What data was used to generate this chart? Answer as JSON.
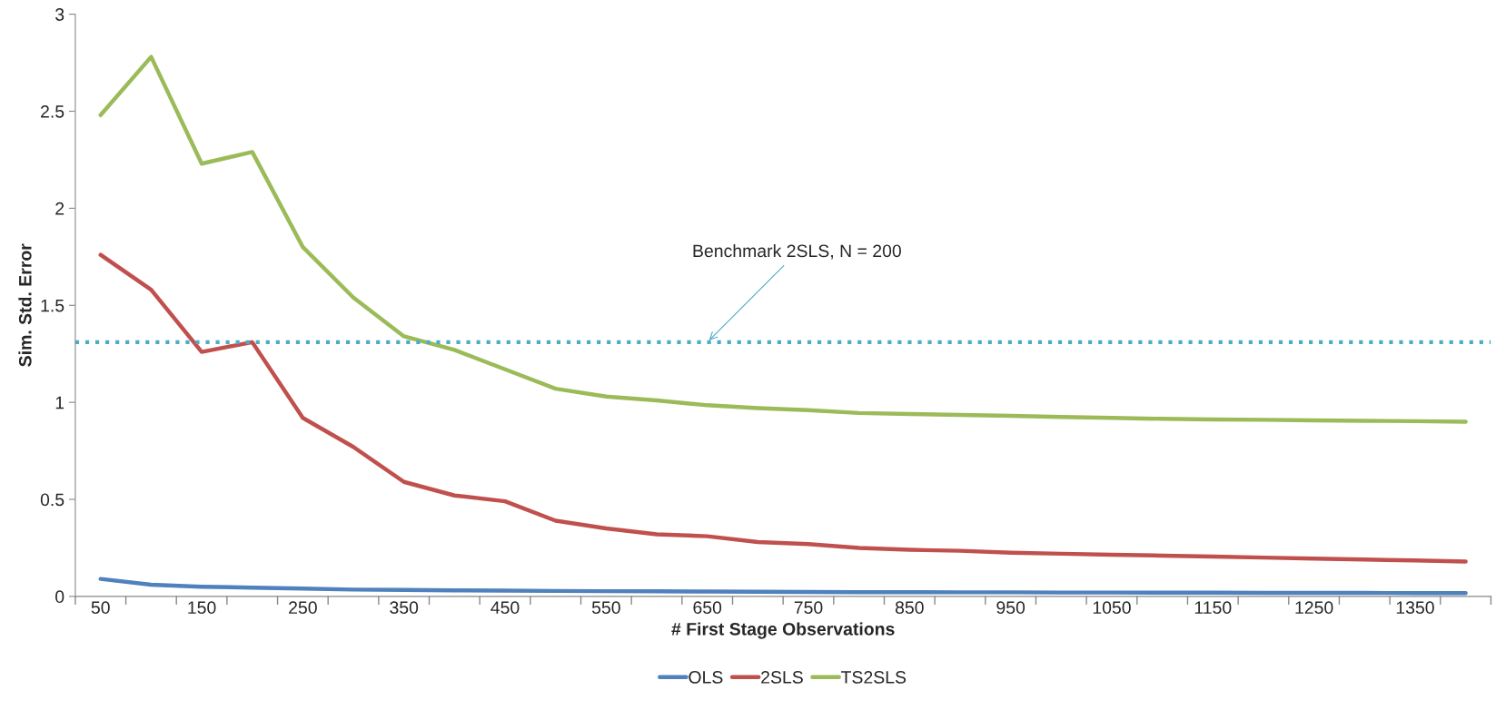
{
  "chart_data": {
    "type": "line",
    "xlabel": "# First Stage Observations",
    "ylabel": "Sim. Std. Error",
    "categories": [
      "50",
      null,
      "150",
      null,
      "250",
      null,
      "350",
      null,
      "450",
      null,
      "550",
      null,
      "650",
      null,
      "750",
      null,
      "850",
      null,
      "950",
      null,
      "1050",
      null,
      "1150",
      null,
      "1250",
      null,
      "1350",
      null
    ],
    "series": [
      {
        "name": "OLS",
        "color": "#4f81bd",
        "values": [
          0.09,
          0.06,
          0.05,
          0.045,
          0.04,
          0.035,
          0.033,
          0.031,
          0.03,
          0.028,
          0.027,
          0.026,
          0.025,
          0.024,
          0.023,
          0.022,
          0.022,
          0.021,
          0.021,
          0.02,
          0.02,
          0.019,
          0.019,
          0.018,
          0.018,
          0.018,
          0.017,
          0.017
        ]
      },
      {
        "name": "2SLS",
        "color": "#c0504d",
        "values": [
          1.76,
          1.58,
          1.26,
          1.31,
          0.92,
          0.77,
          0.59,
          0.52,
          0.49,
          0.39,
          0.35,
          0.32,
          0.31,
          0.28,
          0.27,
          0.25,
          0.24,
          0.235,
          0.225,
          0.22,
          0.215,
          0.21,
          0.205,
          0.2,
          0.195,
          0.19,
          0.185,
          0.18
        ]
      },
      {
        "name": "TS2SLS",
        "color": "#9bbb59",
        "values": [
          2.48,
          2.78,
          2.23,
          2.29,
          1.8,
          1.54,
          1.34,
          1.27,
          1.17,
          1.07,
          1.03,
          1.01,
          0.985,
          0.97,
          0.96,
          0.945,
          0.94,
          0.935,
          0.93,
          0.925,
          0.92,
          0.915,
          0.912,
          0.91,
          0.907,
          0.905,
          0.903,
          0.9
        ]
      }
    ],
    "ref_lines": [
      {
        "axis": "y",
        "value": 1.31,
        "color": "#4bacc6",
        "line_style": "dotted"
      }
    ],
    "annotations": [
      {
        "text": "Benchmark 2SLS, N = 200",
        "x": "650",
        "y": 1.31
      }
    ],
    "ylim": [
      0,
      3
    ],
    "yticks": [
      0,
      0.5,
      1,
      1.5,
      2,
      2.5,
      3
    ],
    "grid": false,
    "legend": "bottom",
    "marker": "none",
    "line_style": "solid"
  }
}
